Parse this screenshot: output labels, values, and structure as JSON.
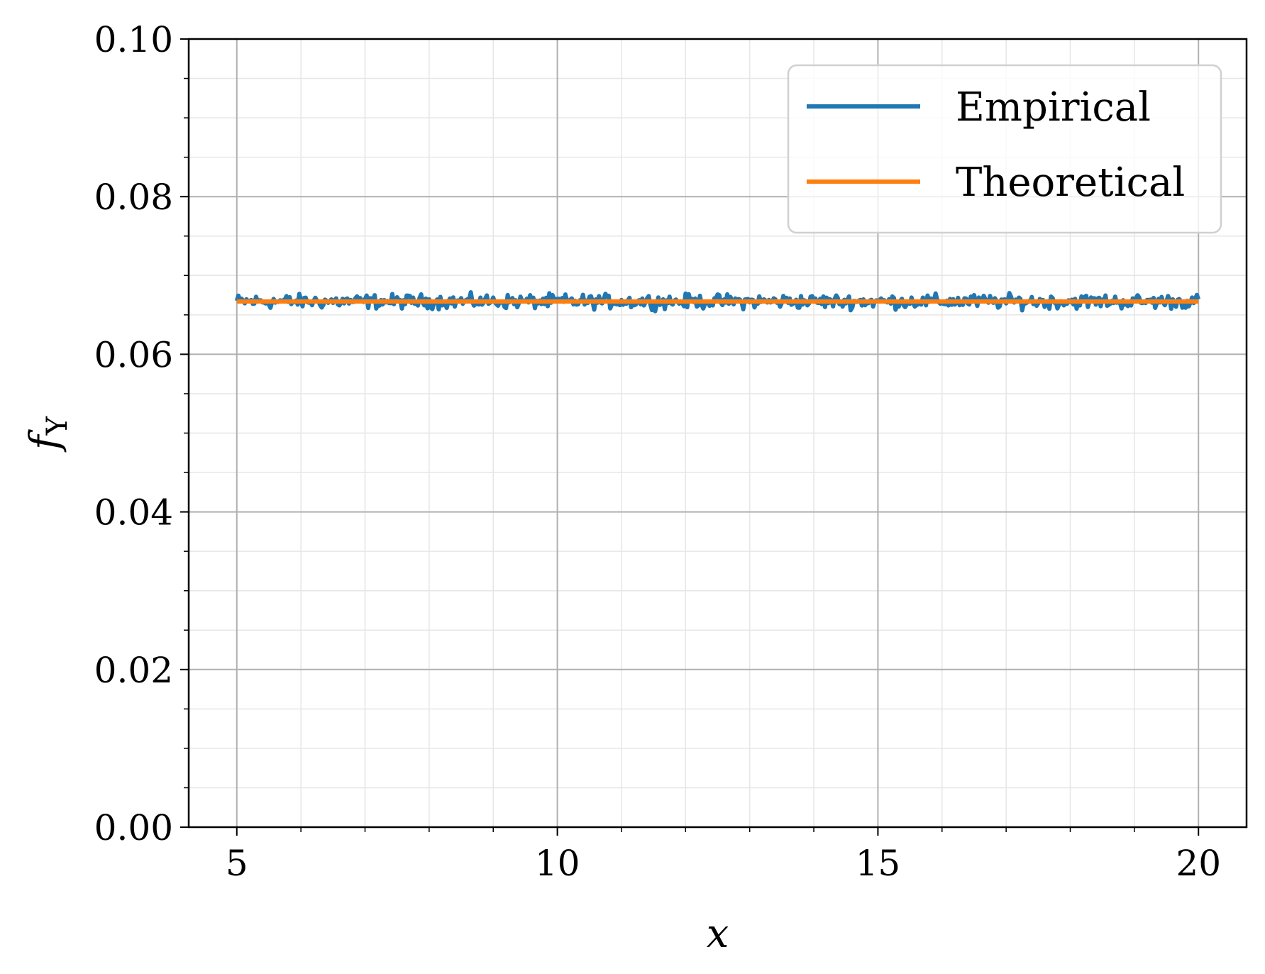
{
  "chart_data": {
    "type": "line",
    "xlabel": "x",
    "ylabel": "f",
    "ylabel_sub": "Y",
    "xlim": [
      4.25,
      20.75
    ],
    "ylim": [
      0.0,
      0.1
    ],
    "xticks": [
      5,
      10,
      15,
      20
    ],
    "xtick_labels": [
      "5",
      "10",
      "15",
      "20"
    ],
    "yticks": [
      0.0,
      0.02,
      0.04,
      0.06,
      0.08,
      0.1
    ],
    "ytick_labels": [
      "0.00",
      "0.02",
      "0.04",
      "0.06",
      "0.08",
      "0.10"
    ],
    "grid": "major and minor",
    "legend_position": "top-right",
    "series": [
      {
        "name": "Empirical",
        "color": "#1f77b4",
        "noisy": true,
        "x_range": [
          5,
          20
        ],
        "mean": 0.0667,
        "spread": 0.0013
      },
      {
        "name": "Theoretical",
        "color": "#ff7f0e",
        "x": [
          5,
          20
        ],
        "y": [
          0.0667,
          0.0667
        ]
      }
    ]
  }
}
